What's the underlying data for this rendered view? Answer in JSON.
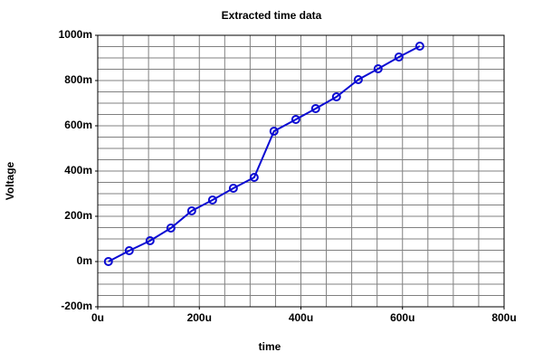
{
  "chart_data": {
    "type": "line",
    "title": "Extracted time data",
    "xlabel": "time",
    "ylabel": "Voltage",
    "series": [
      {
        "name": "Voltage",
        "color": "#0a0ad2",
        "x": [
          21,
          62,
          103,
          144,
          185,
          226,
          267,
          308,
          347,
          390,
          429,
          470,
          513,
          552,
          593,
          634
        ],
        "values": [
          0,
          48,
          92,
          148,
          224,
          272,
          324,
          372,
          576,
          628,
          676,
          728,
          804,
          852,
          904,
          952
        ]
      }
    ],
    "xlim": [
      0,
      800
    ],
    "xticks": [
      {
        "value": 0,
        "label": "0u"
      },
      {
        "value": 200,
        "label": "200u"
      },
      {
        "value": 400,
        "label": "400u"
      },
      {
        "value": 600,
        "label": "600u"
      },
      {
        "value": 800,
        "label": "800u"
      }
    ],
    "ylim": [
      -200,
      1000
    ],
    "yticks": [
      {
        "value": -200,
        "label": "-200m"
      },
      {
        "value": 0,
        "label": "0m"
      },
      {
        "value": 200,
        "label": "200m"
      },
      {
        "value": 400,
        "label": "400m"
      },
      {
        "value": 600,
        "label": "600m"
      },
      {
        "value": 800,
        "label": "800m"
      },
      {
        "value": 1000,
        "label": "1000m"
      }
    ],
    "xgrid": [
      0,
      50,
      100,
      150,
      200,
      250,
      300,
      350,
      400,
      450,
      500,
      550,
      600,
      650,
      700,
      750,
      800
    ],
    "ygrid": [
      -200,
      -150,
      -100,
      -50,
      0,
      50,
      100,
      150,
      200,
      250,
      300,
      350,
      400,
      450,
      500,
      550,
      600,
      650,
      700,
      750,
      800,
      850,
      900,
      950,
      1000
    ],
    "grid": true,
    "markers": "open-circle"
  }
}
